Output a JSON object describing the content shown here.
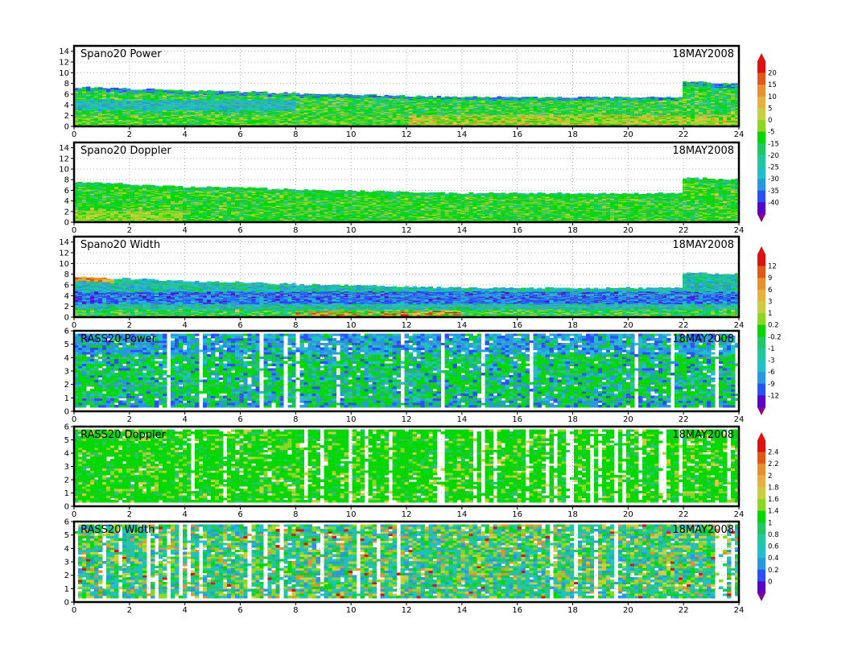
{
  "chart_data": [
    {
      "type": "heatmap",
      "title": "Spano20 Power",
      "date": "18MAY2008",
      "x_ticks": [
        "0",
        "2",
        "4",
        "6",
        "8",
        "10",
        "12",
        "14",
        "16",
        "18",
        "20",
        "22",
        "24"
      ],
      "y_ticks": [
        "0",
        "2",
        "4",
        "6",
        "8",
        "10",
        "12",
        "14"
      ],
      "xlim": [
        0,
        24
      ],
      "ylim": [
        0,
        15
      ],
      "colorbar": {
        "levels": [
          "20",
          "15",
          "10",
          "5",
          "0",
          "-5",
          "-15",
          "-20",
          "-25",
          "-30",
          "-35",
          "-40"
        ]
      },
      "top": [
        7.4,
        7.3,
        7.1,
        7.0,
        6.8,
        6.8,
        6.6,
        6.4,
        6.2,
        6.1,
        6.0,
        5.9,
        5.8,
        5.7,
        5.6,
        5.6,
        5.6,
        5.6,
        5.6,
        5.6,
        5.6,
        5.6,
        8.4,
        8.2,
        8.2
      ],
      "profile": "power",
      "grid": true
    },
    {
      "type": "heatmap",
      "title": "Spano20 Doppler",
      "date": "18MAY2008",
      "x_ticks": [
        "0",
        "2",
        "4",
        "6",
        "8",
        "10",
        "12",
        "14",
        "16",
        "18",
        "20",
        "22",
        "24"
      ],
      "y_ticks": [
        "0",
        "2",
        "4",
        "6",
        "8",
        "10",
        "12",
        "14"
      ],
      "xlim": [
        0,
        24
      ],
      "ylim": [
        0,
        15
      ],
      "top": [
        7.6,
        7.4,
        7.2,
        7.0,
        6.8,
        6.7,
        6.6,
        6.4,
        6.2,
        6.1,
        6.0,
        5.9,
        5.8,
        5.7,
        5.6,
        5.6,
        5.6,
        5.6,
        5.6,
        5.6,
        5.6,
        5.6,
        8.4,
        8.2,
        8.2
      ],
      "profile": "doppler",
      "grid": true
    },
    {
      "type": "heatmap",
      "title": "Spano20 Width",
      "date": "18MAY2008",
      "x_ticks": [
        "0",
        "2",
        "4",
        "6",
        "8",
        "10",
        "12",
        "14",
        "16",
        "18",
        "20",
        "22",
        "24"
      ],
      "y_ticks": [
        "0",
        "2",
        "4",
        "6",
        "8",
        "10",
        "12",
        "14"
      ],
      "xlim": [
        0,
        24
      ],
      "ylim": [
        0,
        15
      ],
      "colorbar": {
        "levels": [
          "12",
          "9",
          "6",
          "3",
          "1",
          "0.2",
          "-0.2",
          "-1",
          "-3",
          "-6",
          "-9",
          "-12"
        ]
      },
      "top": [
        7.6,
        7.4,
        7.2,
        7.0,
        6.8,
        6.7,
        6.6,
        6.4,
        6.2,
        6.1,
        6.0,
        5.9,
        5.8,
        5.7,
        5.6,
        5.6,
        5.6,
        5.6,
        5.6,
        5.6,
        5.6,
        5.6,
        8.4,
        8.2,
        8.2
      ],
      "profile": "width",
      "grid": true
    },
    {
      "type": "heatmap",
      "title": "RASS20 Power",
      "date": "18MAY2008",
      "x_ticks": [
        "0",
        "2",
        "4",
        "6",
        "8",
        "10",
        "12",
        "14",
        "16",
        "18",
        "20",
        "22",
        "24"
      ],
      "y_ticks": [
        "0",
        "1",
        "2",
        "3",
        "4",
        "5",
        "6"
      ],
      "xlim": [
        0,
        24
      ],
      "ylim": [
        0,
        6
      ],
      "top": [
        5.8
      ],
      "profile": "rpower",
      "grid": true
    },
    {
      "type": "heatmap",
      "title": "RASS20 Doppler",
      "date": "18MAY2008",
      "x_ticks": [
        "0",
        "2",
        "4",
        "6",
        "8",
        "10",
        "12",
        "14",
        "16",
        "18",
        "20",
        "22",
        "24"
      ],
      "y_ticks": [
        "0",
        "1",
        "2",
        "3",
        "4",
        "5",
        "6"
      ],
      "xlim": [
        0,
        24
      ],
      "ylim": [
        0,
        6
      ],
      "colorbar": {
        "levels": [
          "2.4",
          "2.2",
          "2",
          "1.8",
          "1.6",
          "1.4",
          "1",
          "0.8",
          "0.6",
          "0.4",
          "0.2",
          "0"
        ]
      },
      "top": [
        5.8
      ],
      "profile": "rdoppler",
      "grid": true
    },
    {
      "type": "heatmap",
      "title": "RASS20 Width",
      "date": "18MAY2008",
      "x_ticks": [
        "0",
        "2",
        "4",
        "6",
        "8",
        "10",
        "12",
        "14",
        "16",
        "18",
        "20",
        "22",
        "24"
      ],
      "y_ticks": [
        "0",
        "1",
        "2",
        "3",
        "4",
        "5",
        "6"
      ],
      "xlim": [
        0,
        24
      ],
      "ylim": [
        0,
        6
      ],
      "top": [
        5.8
      ],
      "profile": "rwidth",
      "grid": true
    }
  ],
  "colors": {
    "scale": [
      "#8b008b",
      "#5a00c8",
      "#2850ff",
      "#2898e0",
      "#20c0c8",
      "#20c8a0",
      "#20c864",
      "#00d800",
      "#88d820",
      "#c8d040",
      "#e8b040",
      "#e89030",
      "#e05818",
      "#e01010"
    ],
    "frame": "#000000",
    "grid": "#9a9a9a"
  }
}
